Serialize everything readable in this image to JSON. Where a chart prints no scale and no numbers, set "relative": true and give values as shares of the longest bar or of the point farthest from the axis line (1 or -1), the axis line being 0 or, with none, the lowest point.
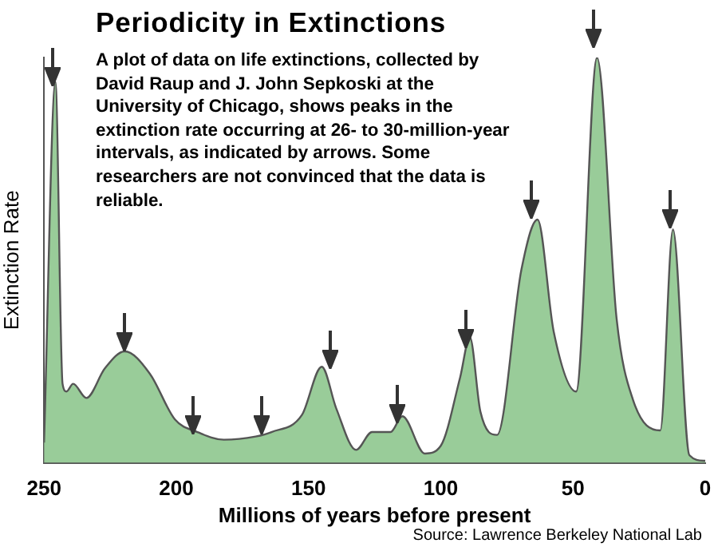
{
  "chart_data": {
    "type": "area",
    "title": "Periodicity in Extinctions",
    "subtitle": "A plot of data on life extinctions, collected by David Raup and J. John Sepkoski at the University of Chicago, shows peaks in the extinction rate occurring at 26- to 30-million-year intervals, as indicated by arrows. Some researchers are not convinced that the data is reliable.",
    "xlabel": "Millions of years before present",
    "ylabel": "Extinction Rate",
    "annotations": [
      "Source: Lawrence Berkeley National Lab"
    ],
    "relative": true,
    "x": [
      250,
      245.7,
      243,
      241.5,
      239,
      234,
      227,
      219.5,
      210,
      200.5,
      192,
      182,
      170,
      164,
      152.5,
      145,
      139.5,
      132,
      126,
      119,
      114.5,
      106,
      100,
      92.7,
      89,
      85,
      78.7,
      69.5,
      63.4,
      57.3,
      48.8,
      40.9,
      33.5,
      27.4,
      17,
      12.2,
      6,
      0
    ],
    "series": [
      {
        "color": "#99cc99",
        "values": [
          0.05,
          0.94,
          0.195,
          0.176,
          0.195,
          0.16,
          0.233,
          0.275,
          0.22,
          0.107,
          0.076,
          0.057,
          0.065,
          0.076,
          0.118,
          0.237,
          0.134,
          0.032,
          0.076,
          0.076,
          0.115,
          0.023,
          0.042,
          0.21,
          0.31,
          0.126,
          0.069,
          0.477,
          0.6,
          0.324,
          0.176,
          1,
          0.355,
          0.157,
          0.08,
          0.576,
          0.019,
          0.005
        ]
      }
    ],
    "xlim": [
      250,
      0
    ],
    "xticks": [
      250,
      200,
      150,
      100,
      50,
      0
    ],
    "grid": false,
    "legend": false
  }
}
